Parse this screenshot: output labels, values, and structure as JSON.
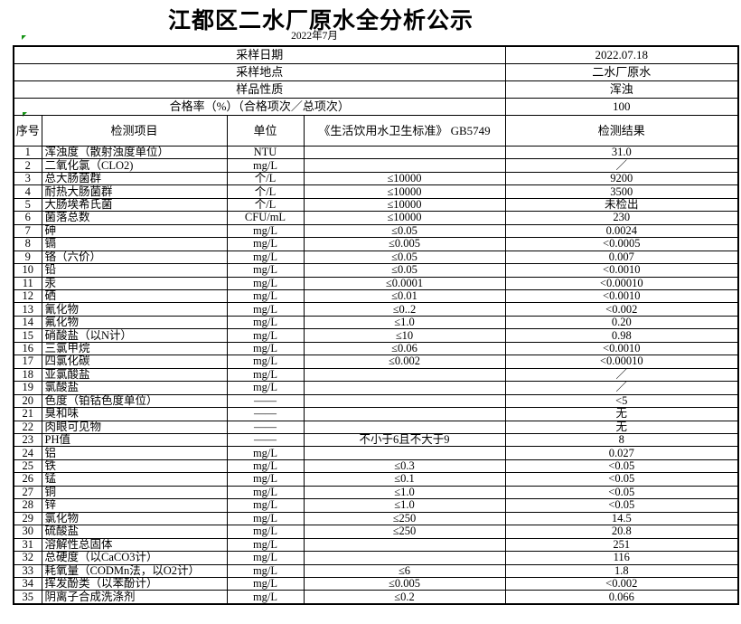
{
  "page": {
    "title": "江都区二水厂原水全分析公示",
    "subtitle": "2022年7月"
  },
  "info": {
    "rows": [
      {
        "label": "采样日期",
        "value": "2022.07.18"
      },
      {
        "label": "采样地点",
        "value": "二水厂原水"
      },
      {
        "label": "样品性质",
        "value": "浑浊"
      },
      {
        "label": "合格率（%）（合格项次／总项次）",
        "value": "100"
      }
    ]
  },
  "table": {
    "headers": [
      "序号",
      "检测项目",
      "单位",
      "《生活饮用水卫生标准》 GB5749",
      "检测结果"
    ],
    "rows": [
      [
        "1",
        "浑浊度（散射浊度单位）",
        "NTU",
        "",
        "31.0"
      ],
      [
        "2",
        "二氧化氯（CLO2)",
        "mg/L",
        "",
        "／"
      ],
      [
        "3",
        "总大肠菌群",
        "个/L",
        "≤10000",
        "9200"
      ],
      [
        "4",
        "耐热大肠菌群",
        "个/L",
        "≤10000",
        "3500"
      ],
      [
        "5",
        "大肠埃希氏菌",
        "个/L",
        "≤10000",
        "未检出"
      ],
      [
        "6",
        "菌落总数",
        "CFU/mL",
        "≤10000",
        "230"
      ],
      [
        "7",
        "砷",
        "mg/L",
        "≤0.05",
        "0.0024"
      ],
      [
        "8",
        "镉",
        "mg/L",
        "≤0.005",
        "<0.0005"
      ],
      [
        "9",
        "铬（六价）",
        "mg/L",
        "≤0.05",
        "0.007"
      ],
      [
        "10",
        "铅",
        "mg/L",
        "≤0.05",
        "<0.0010"
      ],
      [
        "11",
        "汞",
        "mg/L",
        "≤0.0001",
        "<0.00010"
      ],
      [
        "12",
        "硒",
        "mg/L",
        "≤0.01",
        "<0.0010"
      ],
      [
        "13",
        "氰化物",
        "mg/L",
        "≤0..2",
        "<0.002"
      ],
      [
        "14",
        "氟化物",
        "mg/L",
        "≤1.0",
        "0.20"
      ],
      [
        "15",
        "硝酸盐（以N计）",
        "mg/L",
        "≤10",
        "0.98"
      ],
      [
        "16",
        "三氯甲烷",
        "mg/L",
        "≤0.06",
        "<0.0010"
      ],
      [
        "17",
        "四氯化碳",
        "mg/L",
        "≤0.002",
        "<0.00010"
      ],
      [
        "18",
        "亚氯酸盐",
        "mg/L",
        "",
        "／"
      ],
      [
        "19",
        "氯酸盐",
        "mg/L",
        "",
        "／"
      ],
      [
        "20",
        "色度（铂钴色度单位）",
        "——",
        "",
        "<5"
      ],
      [
        "21",
        "臭和味",
        "——",
        "",
        "无"
      ],
      [
        "22",
        "肉眼可见物",
        "——",
        "",
        "无"
      ],
      [
        "23",
        "PH值",
        "——",
        "不小于6且不大于9",
        "8"
      ],
      [
        "24",
        "铝",
        "mg/L",
        "",
        "0.027"
      ],
      [
        "25",
        "铁",
        "mg/L",
        "≤0.3",
        "<0.05"
      ],
      [
        "26",
        "锰",
        "mg/L",
        "≤0.1",
        "<0.05"
      ],
      [
        "27",
        "铜",
        "mg/L",
        "≤1.0",
        "<0.05"
      ],
      [
        "28",
        "锌",
        "mg/L",
        "≤1.0",
        "<0.05"
      ],
      [
        "29",
        "氯化物",
        "mg/L",
        "≤250",
        "14.5"
      ],
      [
        "30",
        "硫酸盐",
        "mg/L",
        "≤250",
        "20.8"
      ],
      [
        "31",
        "溶解性总固体",
        "mg/L",
        "",
        "251"
      ],
      [
        "32",
        "总硬度（以CaCO3计）",
        "mg/L",
        "",
        "116"
      ],
      [
        "33",
        "耗氧量（CODMn法，以O2计）",
        "mg/L",
        "≤6",
        "1.8"
      ],
      [
        "34",
        "挥发酚类（以苯酚计）",
        "mg/L",
        "≤0.005",
        "<0.002"
      ],
      [
        "35",
        "阴离子合成洗涤剂",
        "mg/L",
        "≤0.2",
        "0.066"
      ]
    ]
  },
  "colors": {
    "border": "#000000",
    "marker_green": "#149414",
    "background": "#ffffff"
  }
}
